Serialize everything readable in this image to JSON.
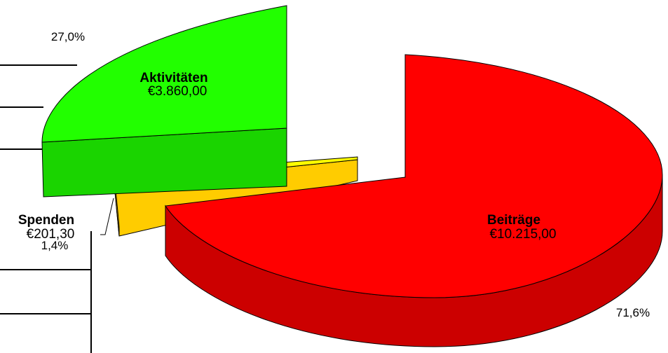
{
  "chart_data": {
    "type": "pie",
    "style": "3d-exploded",
    "categories": [
      "Aktivitäten",
      "Spenden",
      "Beiträge"
    ],
    "values": [
      3860.0,
      201.3,
      10215.0
    ],
    "value_labels": [
      "€3.860,00",
      "€201,30",
      "€10.215,00"
    ],
    "percent_labels": [
      "27,0%",
      "1,4%",
      "71,6%"
    ],
    "percentages": [
      27.0,
      1.4,
      71.6
    ],
    "colors": [
      "#22ff00",
      "#ffcc00",
      "#ff0000"
    ],
    "side_colors": [
      "#1ad400",
      "#ffcc00",
      "#cc0000"
    ],
    "top_edge_colors": [
      "#22ff00",
      "#ffff00",
      "#ff0000"
    ],
    "legend": "none"
  }
}
